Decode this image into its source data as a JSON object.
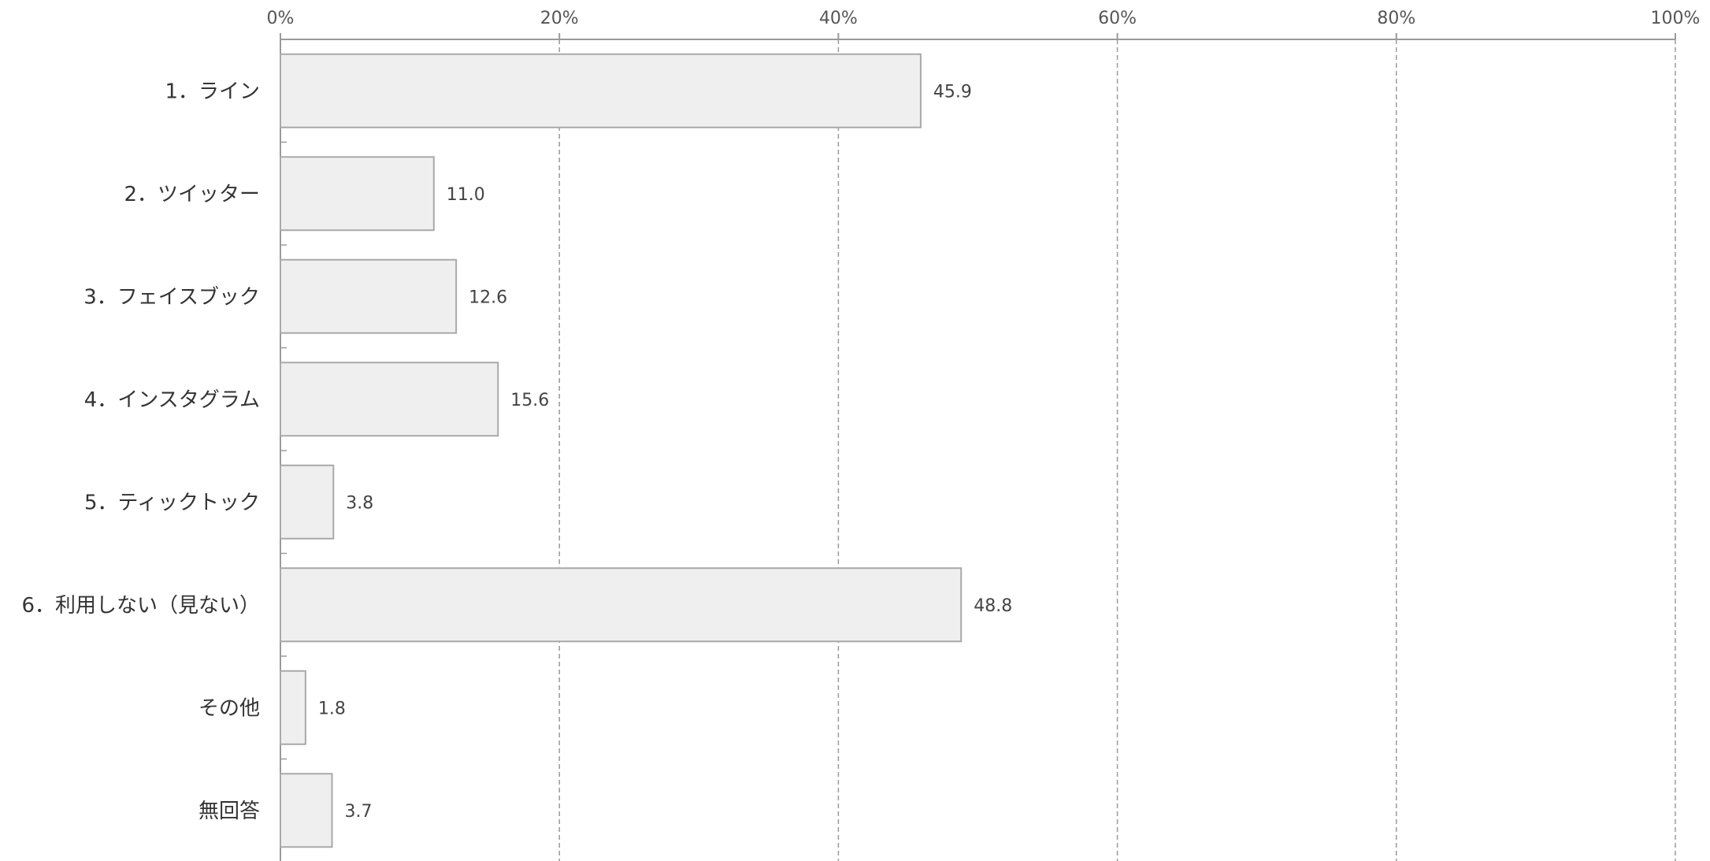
{
  "chart_data": {
    "type": "bar",
    "orientation": "horizontal",
    "title": "",
    "xlabel": "",
    "ylabel": "",
    "xlim": [
      0,
      100
    ],
    "x_ticks": [
      "0%",
      "20%",
      "40%",
      "60%",
      "80%",
      "100%"
    ],
    "x_tick_values": [
      0,
      20,
      40,
      60,
      80,
      100
    ],
    "axis_position": "top",
    "grid": true,
    "legend": "none",
    "categories": [
      "1．ライン",
      "2．ツイッター",
      "3．フェイスブック",
      "4．インスタグラム",
      "5．ティックトック",
      "6．利用しない（見ない）",
      "その他",
      "無回答"
    ],
    "values": [
      45.9,
      11.0,
      12.6,
      15.6,
      3.8,
      48.8,
      1.8,
      3.7
    ],
    "value_labels": [
      "45.9",
      "11.0",
      "12.6",
      "15.6",
      "3.8",
      "48.8",
      "1.8",
      "3.7"
    ],
    "colors": {
      "bar_fill": "#efefef",
      "bar_stroke": "#a9a9a9",
      "grid": "#9a9a9a"
    }
  }
}
